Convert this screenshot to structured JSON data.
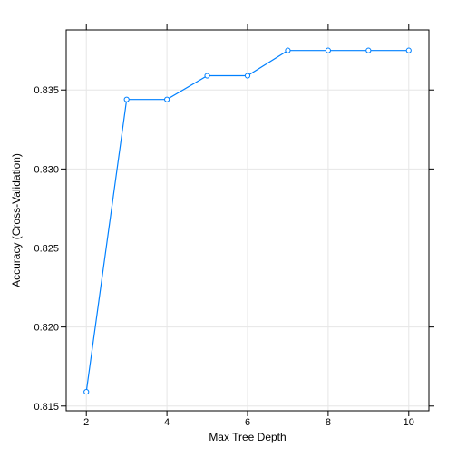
{
  "chart_data": {
    "type": "line",
    "x": [
      2,
      3,
      4,
      5,
      6,
      7,
      8,
      9,
      10
    ],
    "y": [
      0.8159,
      0.8344,
      0.8344,
      0.8359,
      0.8359,
      0.8375,
      0.8375,
      0.8375,
      0.8375
    ],
    "xlabel": "Max Tree Depth",
    "ylabel": "Accuracy (Cross-Validation)",
    "xlim": [
      1.5,
      10.5
    ],
    "ylim": [
      0.8147,
      0.8388
    ],
    "xticks": [
      2,
      4,
      6,
      8,
      10
    ],
    "xtick_labels": [
      "2",
      "4",
      "6",
      "8",
      "10"
    ],
    "yticks": [
      0.815,
      0.82,
      0.825,
      0.83,
      0.835
    ],
    "ytick_labels": [
      "0.815",
      "0.820",
      "0.825",
      "0.830",
      "0.835"
    ],
    "grid": true,
    "markers": "open-circle",
    "colors": {
      "series": "#0080ff",
      "grid": "#e6e6e6",
      "frame": "#000000"
    }
  }
}
